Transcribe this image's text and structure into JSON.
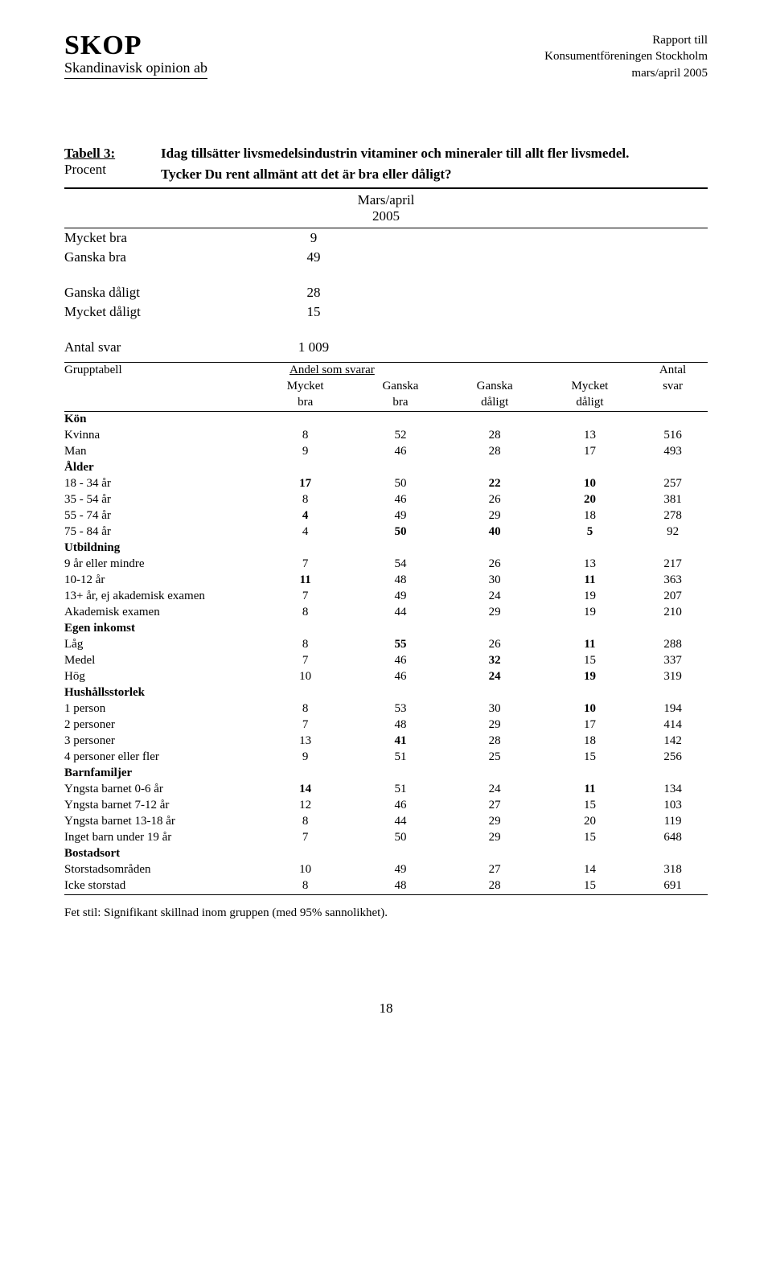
{
  "header": {
    "skop": "SKOP",
    "sub": "Skandinavisk opinion ab",
    "r1": "Rapport till",
    "r2": "Konsumentföreningen Stockholm",
    "r3": "mars/april 2005"
  },
  "title": {
    "tabLabel": "Tabell 3:",
    "procent": "Procent",
    "line1": "Idag tillsätter livsmedelsindustrin vitaminer och mineraler till allt fler livsmedel.",
    "line2": "Tycker Du rent allmänt att det är bra eller dåligt?"
  },
  "period": {
    "l1": "Mars/april",
    "l2": "2005"
  },
  "summary": [
    {
      "label": "Mycket bra",
      "val": "9"
    },
    {
      "label": "Ganska bra",
      "val": "49"
    }
  ],
  "summary2": [
    {
      "label": "Ganska dåligt",
      "val": "28"
    },
    {
      "label": "Mycket dåligt",
      "val": "15"
    }
  ],
  "summary3": [
    {
      "label": "Antal svar",
      "val": "1 009"
    }
  ],
  "grouphead": {
    "gt": "Grupptabell",
    "andel": "Andel som svarar",
    "antal": "Antal",
    "svar": "svar",
    "c1a": "Mycket",
    "c1b": "bra",
    "c2a": "Ganska",
    "c2b": "bra",
    "c3a": "Ganska",
    "c3b": "dåligt",
    "c4a": "Mycket",
    "c4b": "dåligt"
  },
  "rows": [
    {
      "type": "section",
      "label": "Kön"
    },
    {
      "label": "Kvinna",
      "v": [
        "8",
        "52",
        "28",
        "13",
        "516"
      ],
      "bold": []
    },
    {
      "label": "Man",
      "v": [
        "9",
        "46",
        "28",
        "17",
        "493"
      ],
      "bold": []
    },
    {
      "type": "section",
      "label": "Ålder"
    },
    {
      "label": "18 - 34 år",
      "v": [
        "17",
        "50",
        "22",
        "10",
        "257"
      ],
      "bold": [
        0,
        2,
        3
      ]
    },
    {
      "label": "35 - 54 år",
      "v": [
        "8",
        "46",
        "26",
        "20",
        "381"
      ],
      "bold": [
        3
      ]
    },
    {
      "label": "55 - 74 år",
      "v": [
        "4",
        "49",
        "29",
        "18",
        "278"
      ],
      "bold": [
        0
      ]
    },
    {
      "label": "75 - 84 år",
      "v": [
        "4",
        "50",
        "40",
        "5",
        "92"
      ],
      "bold": [
        1,
        2,
        3
      ]
    },
    {
      "type": "section",
      "label": "Utbildning"
    },
    {
      "label": "9 år eller mindre",
      "v": [
        "7",
        "54",
        "26",
        "13",
        "217"
      ],
      "bold": []
    },
    {
      "label": "10-12 år",
      "v": [
        "11",
        "48",
        "30",
        "11",
        "363"
      ],
      "bold": [
        0,
        3
      ]
    },
    {
      "label": "13+ år, ej akademisk examen",
      "v": [
        "7",
        "49",
        "24",
        "19",
        "207"
      ],
      "bold": []
    },
    {
      "label": "Akademisk examen",
      "v": [
        "8",
        "44",
        "29",
        "19",
        "210"
      ],
      "bold": []
    },
    {
      "type": "section",
      "label": "Egen inkomst"
    },
    {
      "label": "Låg",
      "v": [
        "8",
        "55",
        "26",
        "11",
        "288"
      ],
      "bold": [
        1,
        3
      ]
    },
    {
      "label": "Medel",
      "v": [
        "7",
        "46",
        "32",
        "15",
        "337"
      ],
      "bold": [
        2
      ]
    },
    {
      "label": "Hög",
      "v": [
        "10",
        "46",
        "24",
        "19",
        "319"
      ],
      "bold": [
        2,
        3
      ]
    },
    {
      "type": "section",
      "label": "Hushållsstorlek"
    },
    {
      "label": "1 person",
      "v": [
        "8",
        "53",
        "30",
        "10",
        "194"
      ],
      "bold": [
        3
      ]
    },
    {
      "label": "2 personer",
      "v": [
        "7",
        "48",
        "29",
        "17",
        "414"
      ],
      "bold": []
    },
    {
      "label": "3 personer",
      "v": [
        "13",
        "41",
        "28",
        "18",
        "142"
      ],
      "bold": [
        1
      ]
    },
    {
      "label": "4 personer eller fler",
      "v": [
        "9",
        "51",
        "25",
        "15",
        "256"
      ],
      "bold": []
    },
    {
      "type": "section",
      "label": "Barnfamiljer"
    },
    {
      "label": "Yngsta barnet 0-6 år",
      "v": [
        "14",
        "51",
        "24",
        "11",
        "134"
      ],
      "bold": [
        0,
        3
      ]
    },
    {
      "label": "Yngsta barnet 7-12 år",
      "v": [
        "12",
        "46",
        "27",
        "15",
        "103"
      ],
      "bold": []
    },
    {
      "label": "Yngsta barnet 13-18 år",
      "v": [
        "8",
        "44",
        "29",
        "20",
        "119"
      ],
      "bold": []
    },
    {
      "label": "Inget barn under 19 år",
      "v": [
        "7",
        "50",
        "29",
        "15",
        "648"
      ],
      "bold": []
    },
    {
      "type": "section",
      "label": "Bostadsort"
    },
    {
      "label": "Storstadsområden",
      "v": [
        "10",
        "49",
        "27",
        "14",
        "318"
      ],
      "bold": []
    },
    {
      "label": "Icke storstad",
      "v": [
        "8",
        "48",
        "28",
        "15",
        "691"
      ],
      "bold": []
    }
  ],
  "footnote": "Fet stil: Signifikant skillnad inom gruppen (med 95% sannolikhet).",
  "pagenum": "18"
}
